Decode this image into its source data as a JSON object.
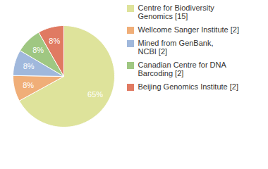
{
  "chart_data": {
    "type": "pie",
    "categories": [
      "Centre for Biodiversity\nGenomics [15]",
      "Wellcome Sanger Institute [2]",
      "Mined from GenBank,\nNCBI [2]",
      "Canadian Centre for DNA\nBarcoding [2]",
      "Beijing Genomics Institute [2]"
    ],
    "values": [
      65,
      8,
      8,
      8,
      8
    ],
    "value_labels": [
      "65%",
      "8%",
      "8%",
      "8%",
      "8%"
    ],
    "colors": [
      "#dee39b",
      "#f0ae78",
      "#a0b8dc",
      "#9fc782",
      "#e07a62"
    ],
    "data_labels": true,
    "legend": "top-right"
  }
}
